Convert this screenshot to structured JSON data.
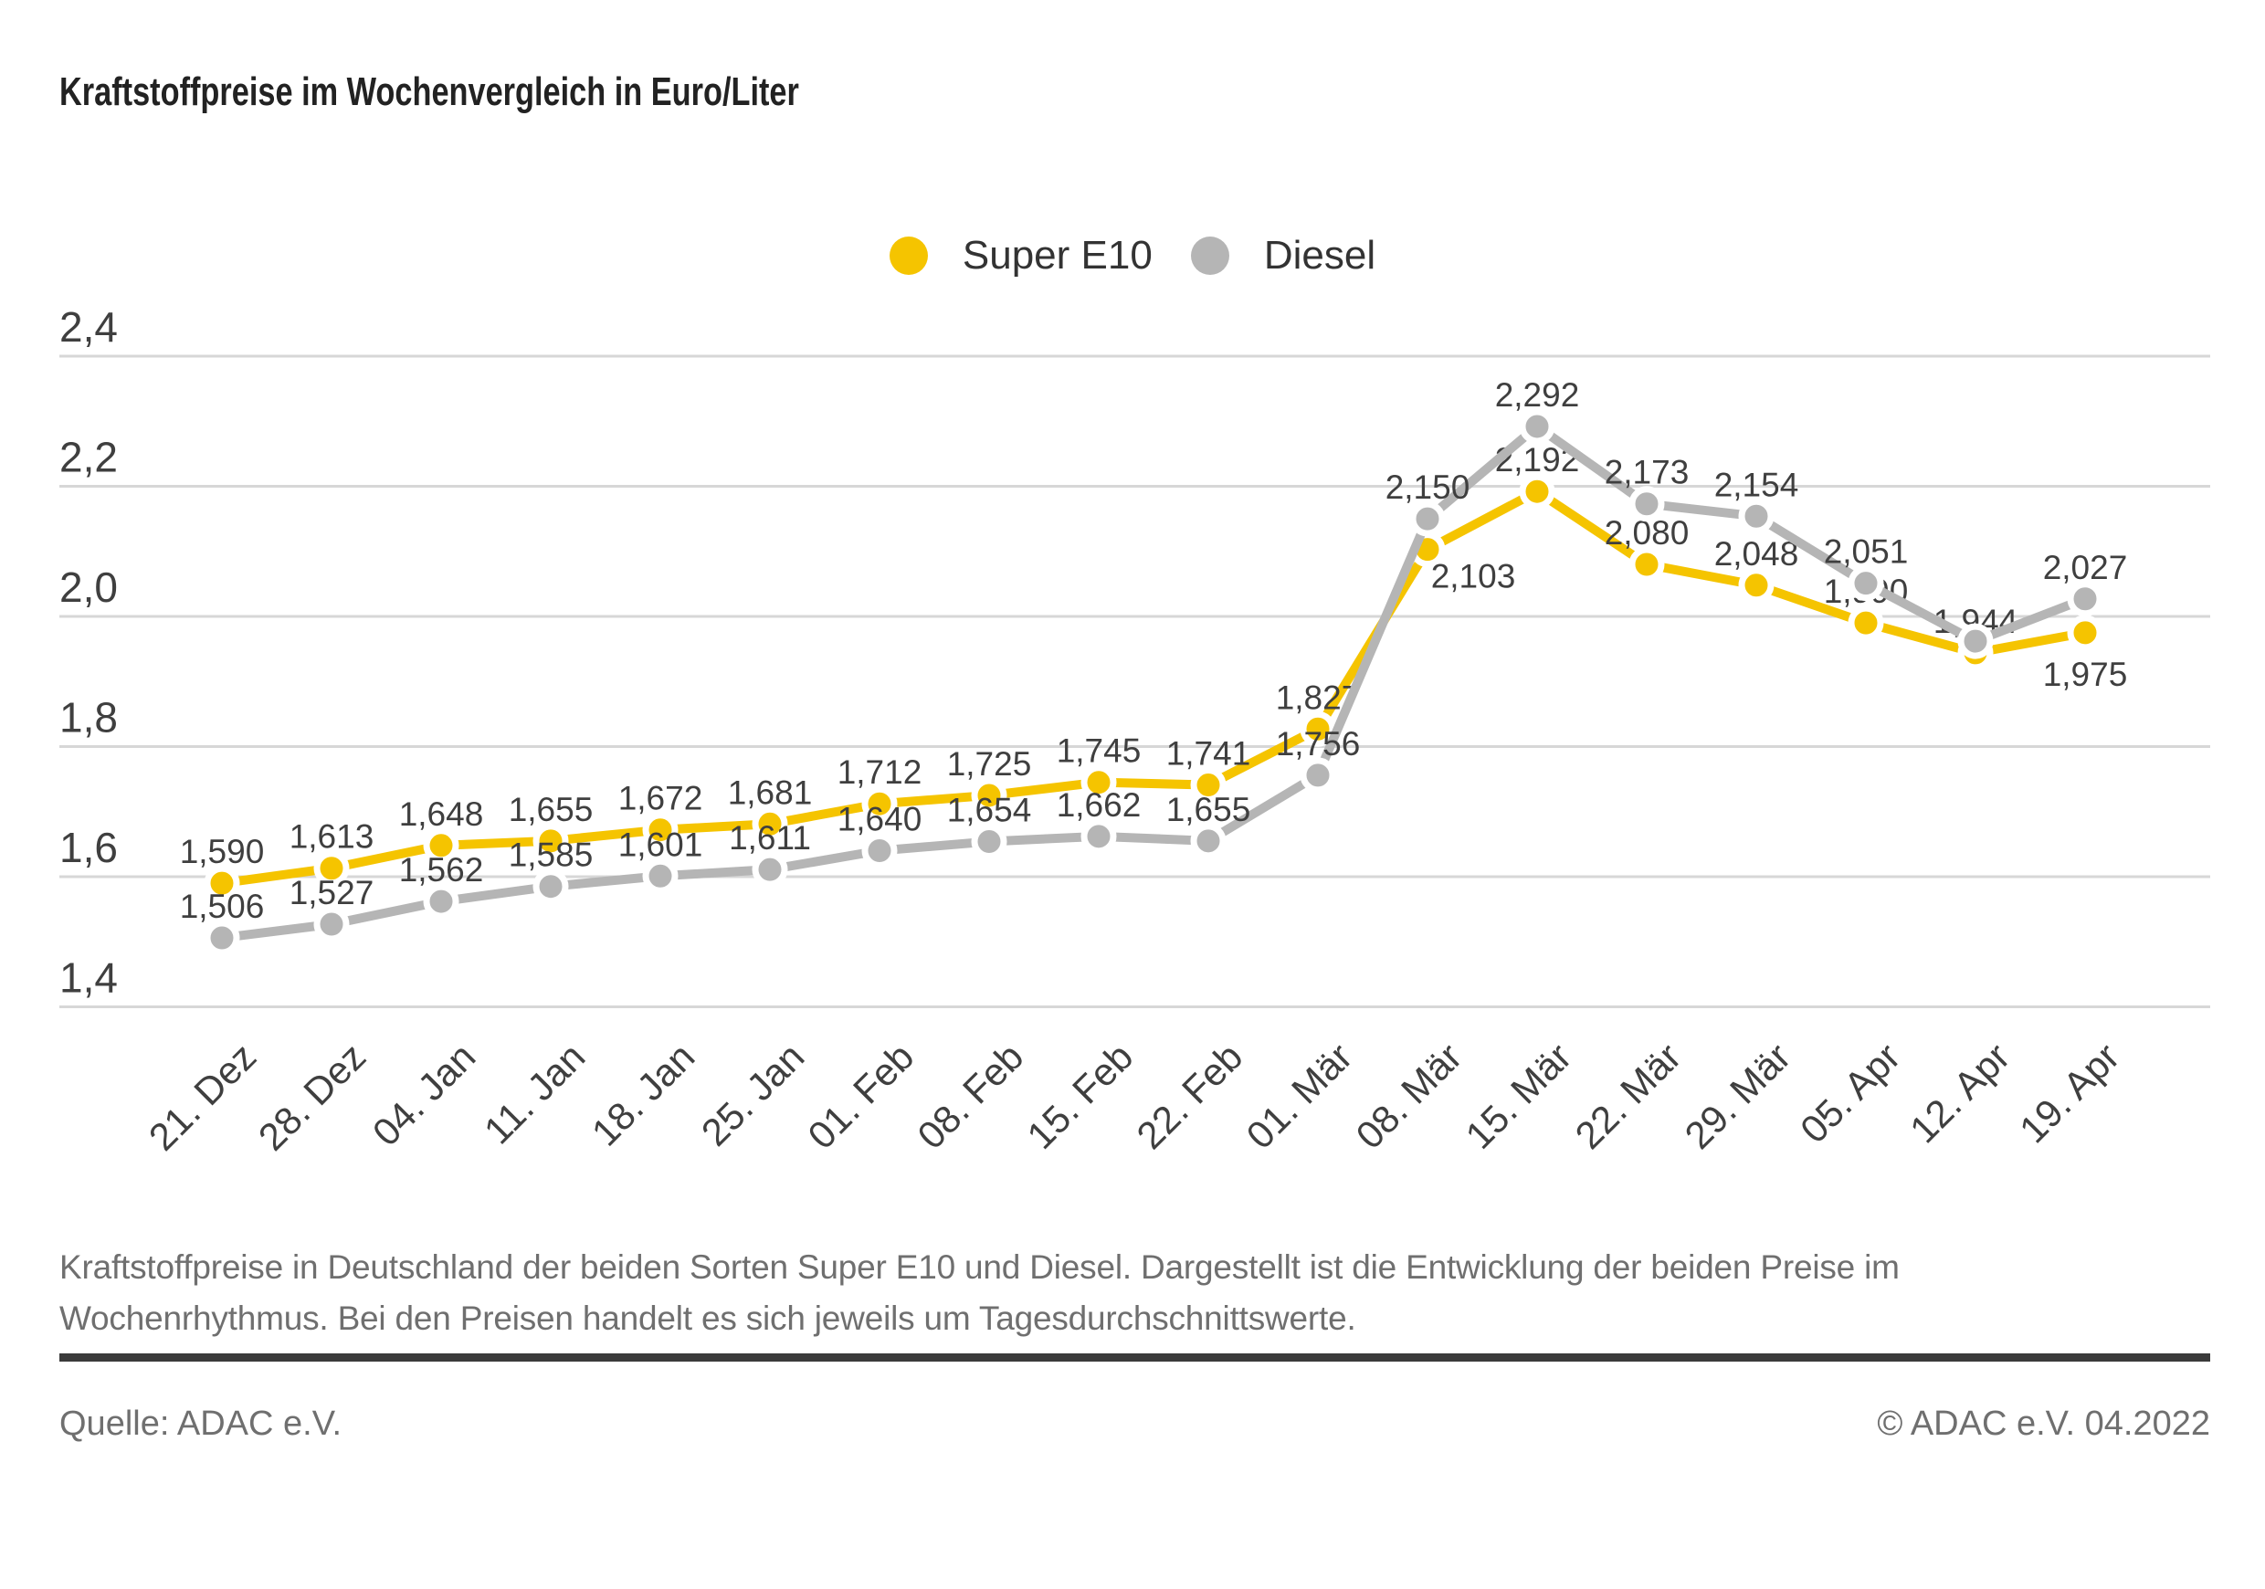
{
  "chart_data": {
    "type": "line",
    "title": "Kraftstoffpreise im Wochenvergleich in Euro/Liter",
    "categories": [
      "21. Dez",
      "28. Dez",
      "04. Jan",
      "11. Jan",
      "18. Jan",
      "25. Jan",
      "01. Feb",
      "08. Feb",
      "15. Feb",
      "22. Feb",
      "01. Mär",
      "08. Mär",
      "15. Mär",
      "22. Mär",
      "29. Mär",
      "05. Apr",
      "12. Apr",
      "19. Apr"
    ],
    "series": [
      {
        "name": "Super E10",
        "color": "#F5C400",
        "values": [
          1.59,
          1.613,
          1.648,
          1.655,
          1.672,
          1.681,
          1.712,
          1.725,
          1.745,
          1.741,
          1.827,
          2.103,
          2.192,
          2.08,
          2.048,
          1.99,
          1.944,
          1.975
        ],
        "point_labels": [
          "1,590",
          "1,613",
          "1,648",
          "1,655",
          "1,672",
          "1,681",
          "1,712",
          "1,725",
          "1,745",
          "1,741",
          "1,827",
          "2,103",
          "2,192",
          "2,080",
          "2,048",
          "1,990",
          "1,944",
          "1,975"
        ],
        "label_pos_overrides": {
          "11": "below-right",
          "17": "below"
        }
      },
      {
        "name": "Diesel",
        "color": "#B5B5B5",
        "values": [
          1.506,
          1.527,
          1.562,
          1.585,
          1.601,
          1.611,
          1.64,
          1.654,
          1.662,
          1.655,
          1.756,
          2.15,
          2.292,
          2.173,
          2.154,
          2.051,
          1.962,
          2.027
        ],
        "point_labels": [
          "1,506",
          "1,527",
          "1,562",
          "1,585",
          "1,601",
          "1,611",
          "1,640",
          "1,654",
          "1,662",
          "1,655",
          "1,756",
          "2,150",
          "2,292",
          "2,173",
          "2,154",
          "2,051",
          "",
          "2,027"
        ]
      }
    ],
    "ylim": [
      1.4,
      2.4
    ],
    "yticks": [
      {
        "value": 2.4,
        "label": "2,4"
      },
      {
        "value": 2.2,
        "label": "2,2"
      },
      {
        "value": 2.0,
        "label": "2,0"
      },
      {
        "value": 1.8,
        "label": "1,8"
      },
      {
        "value": 1.6,
        "label": "1,6"
      },
      {
        "value": 1.4,
        "label": "1,4"
      }
    ],
    "grid": true,
    "legend_position": "top-center"
  },
  "footer": {
    "description": "Kraftstoffpreise in Deutschland der beiden Sorten Super E10 und Diesel. Dargestellt ist die Entwicklung der beiden Preise im Wochenrhythmus. Bei den Preisen handelt es sich jeweils um Tagesdurchschnittswerte.",
    "source": "Quelle: ADAC e.V.",
    "copyright": "© ADAC e.V. 04.2022"
  }
}
